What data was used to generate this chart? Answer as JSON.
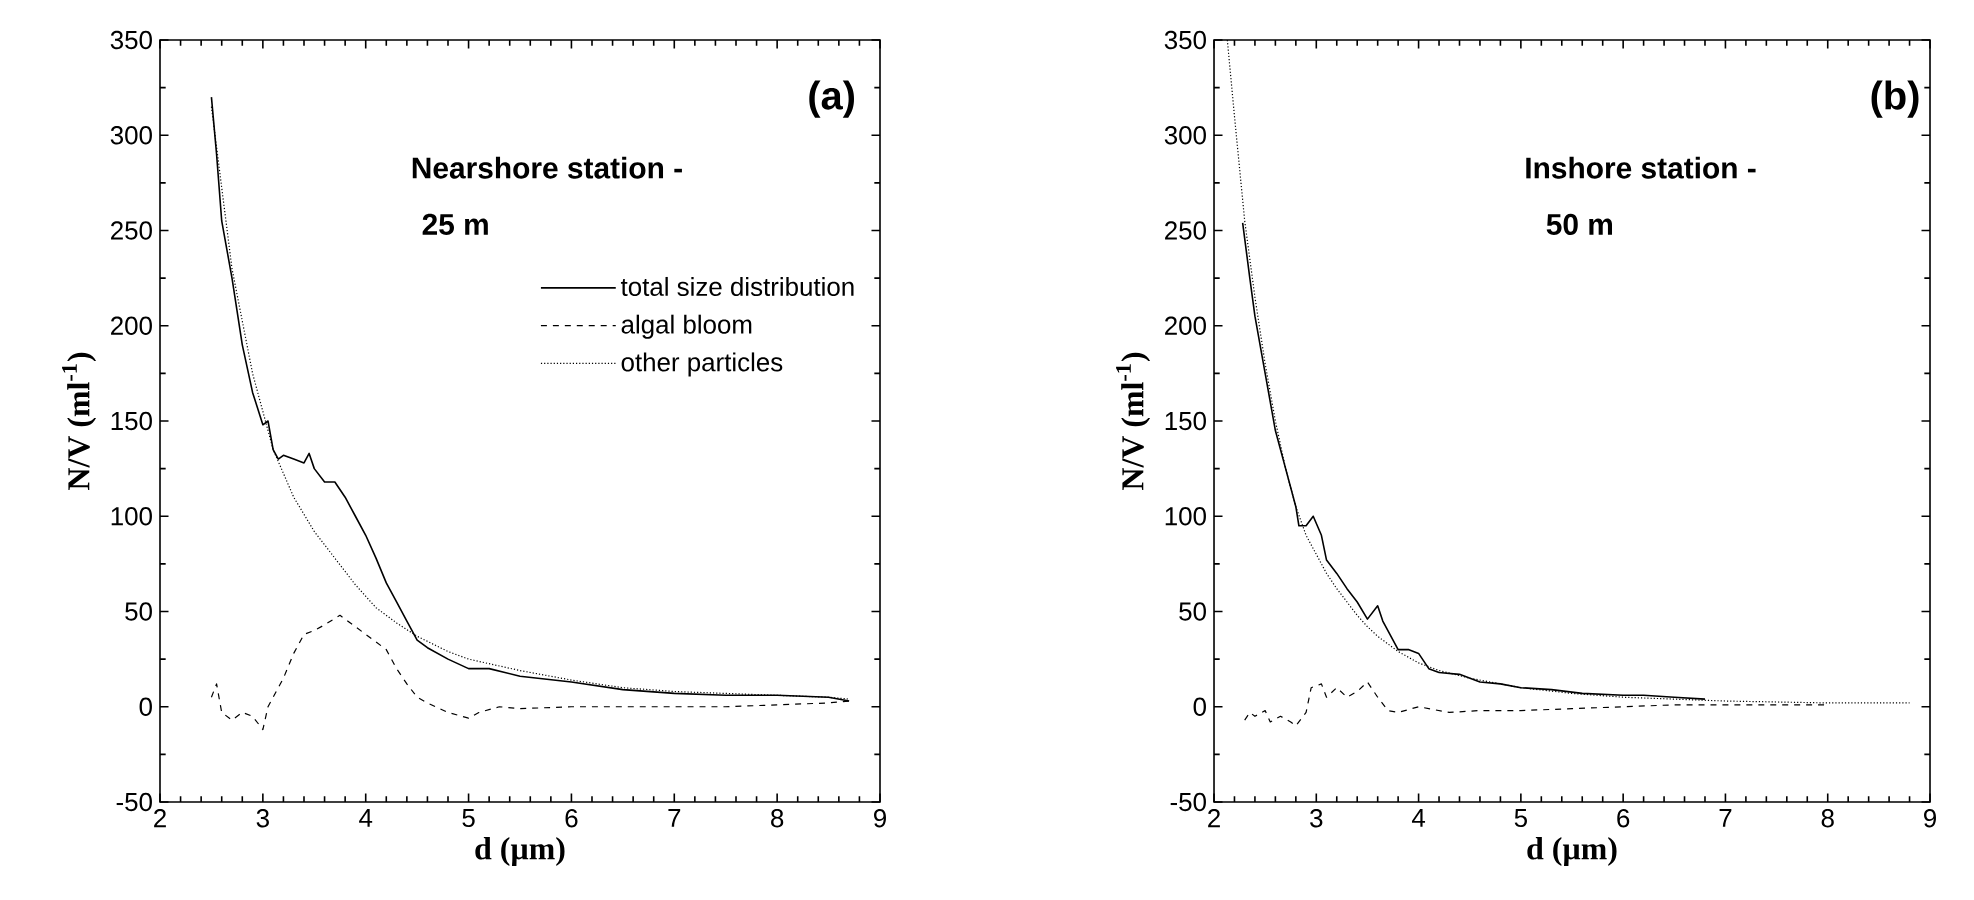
{
  "chart_data": [
    {
      "type": "line",
      "xlabel": "d (µm)",
      "ylabel": "N/V (ml$^{-1}$)",
      "xlim": [
        2,
        9
      ],
      "ylim": [
        -50,
        350
      ],
      "xticks": [
        2,
        3,
        4,
        5,
        6,
        7,
        8,
        9
      ],
      "yticks": [
        -50,
        0,
        50,
        100,
        150,
        200,
        250,
        300,
        350
      ],
      "legend": "top right",
      "annotations": [
        "(a)",
        "Nearshore station -",
        "25 m"
      ],
      "series": [
        {
          "name": "total size distribution",
          "color": "#000000",
          "line_style": "solid",
          "x": [
            2.5,
            2.55,
            2.6,
            2.7,
            2.8,
            2.9,
            3.0,
            3.05,
            3.1,
            3.15,
            3.2,
            3.3,
            3.4,
            3.45,
            3.5,
            3.6,
            3.7,
            3.8,
            3.9,
            4.0,
            4.1,
            4.2,
            4.3,
            4.4,
            4.5,
            4.6,
            4.8,
            5.0,
            5.2,
            5.5,
            6.0,
            6.5,
            7.0,
            7.5,
            8.0,
            8.5,
            8.7
          ],
          "values": [
            320,
            290,
            255,
            225,
            190,
            165,
            148,
            150,
            135,
            130,
            132,
            130,
            128,
            133,
            125,
            118,
            118,
            110,
            100,
            90,
            78,
            65,
            55,
            45,
            35,
            31,
            25,
            20,
            20,
            16,
            13,
            9,
            7,
            6,
            6,
            5,
            3
          ]
        },
        {
          "name": "algal bloom",
          "color": "#000000",
          "line_style": "dashed",
          "x": [
            2.5,
            2.55,
            2.6,
            2.7,
            2.8,
            2.9,
            3.0,
            3.05,
            3.1,
            3.2,
            3.3,
            3.4,
            3.5,
            3.6,
            3.75,
            3.9,
            4.0,
            4.2,
            4.3,
            4.4,
            4.5,
            4.6,
            4.8,
            5.0,
            5.1,
            5.3,
            5.5,
            6.0,
            6.5,
            7.0,
            7.5,
            8.0,
            8.5,
            8.7
          ],
          "values": [
            5,
            12,
            -3,
            -7,
            -3,
            -5,
            -12,
            0,
            5,
            15,
            28,
            38,
            40,
            43,
            48,
            42,
            38,
            30,
            20,
            12,
            5,
            2,
            -3,
            -6,
            -3,
            0,
            -1,
            0,
            0,
            0,
            0,
            1,
            2,
            3
          ]
        },
        {
          "name": "other particles",
          "color": "#000000",
          "line_style": "dotted",
          "x": [
            2.5,
            2.7,
            2.9,
            3.1,
            3.3,
            3.5,
            3.7,
            3.9,
            4.1,
            4.3,
            4.5,
            4.8,
            5.0,
            5.5,
            6.0,
            6.5,
            7.0,
            7.5,
            8.0,
            8.5,
            8.7
          ],
          "values": [
            315,
            230,
            175,
            135,
            110,
            92,
            78,
            64,
            52,
            44,
            37,
            29,
            25,
            19,
            14,
            10,
            8,
            7,
            6,
            5,
            4
          ]
        }
      ]
    },
    {
      "type": "line",
      "xlabel": "d (µm)",
      "ylabel": "N/V (ml$^{-1}$)",
      "xlim": [
        2,
        9
      ],
      "ylim": [
        -50,
        350
      ],
      "xticks": [
        2,
        3,
        4,
        5,
        6,
        7,
        8,
        9
      ],
      "yticks": [
        -50,
        0,
        50,
        100,
        150,
        200,
        250,
        300,
        350
      ],
      "annotations": [
        "(b)",
        "Inshore station -",
        "50 m"
      ],
      "series": [
        {
          "color": "#000000",
          "line_style": "solid",
          "x": [
            2.28,
            2.35,
            2.4,
            2.5,
            2.6,
            2.7,
            2.8,
            2.83,
            2.9,
            2.97,
            3.05,
            3.1,
            3.2,
            3.3,
            3.4,
            3.5,
            3.6,
            3.65,
            3.75,
            3.8,
            3.9,
            4.0,
            4.1,
            4.2,
            4.4,
            4.6,
            4.8,
            5.0,
            5.3,
            5.6,
            6.0,
            6.2,
            6.5,
            6.8
          ],
          "values": [
            254,
            225,
            205,
            175,
            145,
            125,
            105,
            95,
            95,
            100,
            90,
            77,
            70,
            62,
            55,
            46,
            53,
            45,
            35,
            30,
            30,
            28,
            20,
            18,
            17,
            13,
            12,
            10,
            9,
            7,
            6,
            6,
            5,
            4
          ]
        },
        {
          "color": "#000000",
          "line_style": "dashed",
          "x": [
            2.3,
            2.35,
            2.4,
            2.5,
            2.55,
            2.65,
            2.75,
            2.8,
            2.9,
            2.95,
            3.05,
            3.1,
            3.2,
            3.3,
            3.4,
            3.5,
            3.6,
            3.7,
            3.8,
            4.0,
            4.3,
            4.6,
            5.0,
            5.5,
            6.0,
            6.5,
            7.0,
            7.5,
            8.0
          ],
          "values": [
            -7,
            -3,
            -5,
            -2,
            -8,
            -5,
            -8,
            -10,
            -3,
            10,
            12,
            5,
            10,
            5,
            8,
            13,
            5,
            -2,
            -3,
            0,
            -3,
            -2,
            -2,
            -1,
            0,
            1,
            1,
            1,
            1
          ]
        },
        {
          "color": "#000000",
          "line_style": "dotted",
          "x": [
            2.13,
            2.2,
            2.3,
            2.4,
            2.5,
            2.6,
            2.7,
            2.8,
            2.9,
            3.0,
            3.1,
            3.2,
            3.3,
            3.4,
            3.5,
            3.6,
            3.7,
            3.8,
            4.0,
            4.2,
            4.5,
            5.0,
            5.5,
            6.0,
            6.5,
            7.0,
            8.0,
            8.8
          ],
          "values": [
            350,
            310,
            255,
            215,
            180,
            150,
            125,
            105,
            90,
            80,
            70,
            62,
            55,
            48,
            42,
            37,
            33,
            29,
            23,
            19,
            15,
            10,
            7,
            5,
            4,
            3,
            2,
            2
          ]
        }
      ]
    }
  ]
}
